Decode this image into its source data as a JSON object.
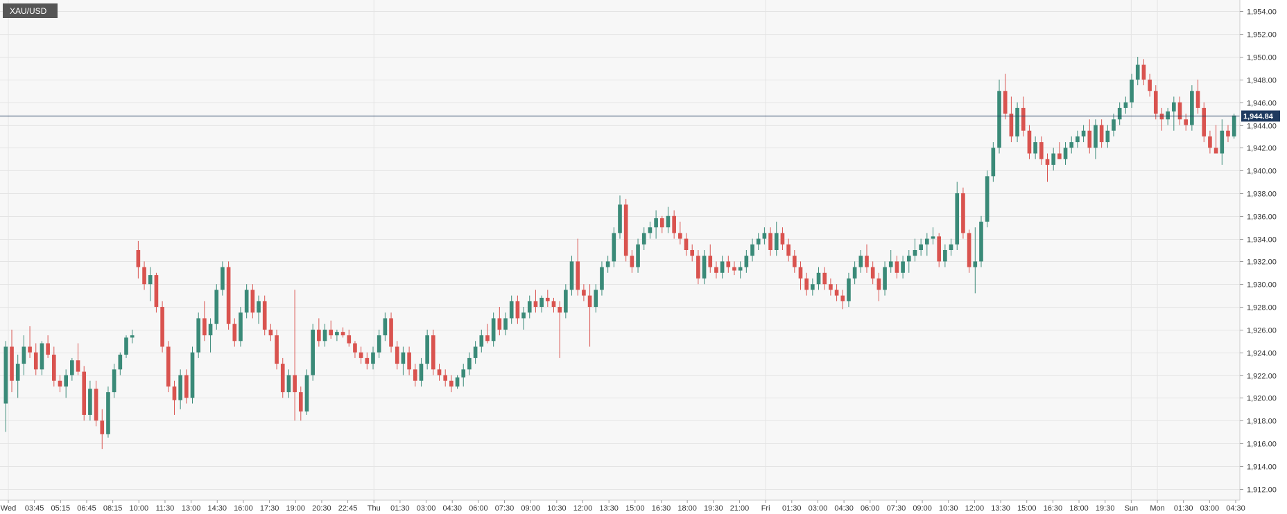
{
  "chart_data": {
    "type": "candlestick",
    "symbol": "XAU/USD",
    "last_price": 1944.84,
    "last_price_label": "1,944.84",
    "ylim": [
      1911,
      1955
    ],
    "y_ticks": [
      1912,
      1914,
      1916,
      1918,
      1920,
      1922,
      1924,
      1926,
      1928,
      1930,
      1932,
      1934,
      1936,
      1938,
      1940,
      1942,
      1944,
      1946,
      1948,
      1950,
      1952,
      1954
    ],
    "y_tick_labels": [
      "1,912.00",
      "1,914.00",
      "1,916.00",
      "1,918.00",
      "1,920.00",
      "1,922.00",
      "1,924.00",
      "1,926.00",
      "1,928.00",
      "1,930.00",
      "1,932.00",
      "1,934.00",
      "1,936.00",
      "1,938.00",
      "1,940.00",
      "1,942.00",
      "1,944.00",
      "1,946.00",
      "1,948.00",
      "1,950.00",
      "1,952.00",
      "1,954.00"
    ],
    "x_labels": [
      "Wed",
      "03:45",
      "05:15",
      "06:45",
      "08:15",
      "10:00",
      "11:30",
      "13:00",
      "14:30",
      "16:00",
      "17:30",
      "19:00",
      "20:30",
      "22:45",
      "Thu",
      "01:30",
      "03:00",
      "04:30",
      "06:00",
      "07:30",
      "09:00",
      "10:30",
      "12:00",
      "13:30",
      "15:00",
      "16:30",
      "18:00",
      "19:30",
      "21:00",
      "Fri",
      "01:30",
      "03:00",
      "04:30",
      "06:00",
      "07:30",
      "09:00",
      "10:30",
      "12:00",
      "13:30",
      "15:00",
      "16:30",
      "18:00",
      "19:30",
      "Sun",
      "Mon",
      "01:30",
      "03:00",
      "04:30"
    ],
    "day_separators": [
      "Wed",
      "Thu",
      "Fri",
      "Sun",
      "Mon"
    ],
    "grid": true,
    "colors": {
      "up": "#3a8a78",
      "down": "#d9534f",
      "last_line": "#1f3a5f",
      "label_bg": "#555555",
      "price_bg": "#1f3a5f"
    },
    "candles": [
      [
        1919.5,
        1925.0,
        1917.0,
        1924.5
      ],
      [
        1924.5,
        1926.0,
        1920.5,
        1921.5
      ],
      [
        1921.5,
        1923.8,
        1920.0,
        1923.0
      ],
      [
        1923.0,
        1925.5,
        1922.0,
        1924.5
      ],
      [
        1924.5,
        1926.3,
        1923.5,
        1924.0
      ],
      [
        1924.0,
        1924.8,
        1922.0,
        1922.5
      ],
      [
        1922.5,
        1925.0,
        1922.0,
        1924.8
      ],
      [
        1924.8,
        1925.5,
        1923.5,
        1923.8
      ],
      [
        1923.8,
        1924.5,
        1921.0,
        1921.5
      ],
      [
        1921.5,
        1922.0,
        1920.5,
        1921.0
      ],
      [
        1921.0,
        1922.5,
        1920.0,
        1922.0
      ],
      [
        1922.0,
        1923.5,
        1921.5,
        1923.3
      ],
      [
        1923.3,
        1924.8,
        1922.0,
        1922.3
      ],
      [
        1922.3,
        1922.8,
        1918.0,
        1918.5
      ],
      [
        1918.5,
        1921.5,
        1918.0,
        1920.8
      ],
      [
        1920.8,
        1921.5,
        1917.5,
        1918.0
      ],
      [
        1918.0,
        1919.0,
        1915.5,
        1916.8
      ],
      [
        1916.8,
        1921.0,
        1916.5,
        1920.5
      ],
      [
        1920.5,
        1923.0,
        1920.0,
        1922.5
      ],
      [
        1922.5,
        1924.0,
        1922.0,
        1923.8
      ],
      [
        1923.8,
        1925.5,
        1923.5,
        1925.3
      ],
      [
        1925.3,
        1926.0,
        1924.8,
        1925.5
      ],
      [
        1933.0,
        1933.8,
        1930.5,
        1931.5
      ],
      [
        1931.5,
        1932.0,
        1929.5,
        1930.0
      ],
      [
        1930.0,
        1931.5,
        1928.5,
        1930.8
      ],
      [
        1930.8,
        1931.0,
        1927.5,
        1928.0
      ],
      [
        1928.0,
        1928.5,
        1924.0,
        1924.5
      ],
      [
        1924.5,
        1925.0,
        1920.5,
        1921.0
      ],
      [
        1921.0,
        1921.5,
        1918.5,
        1919.8
      ],
      [
        1919.8,
        1922.5,
        1919.0,
        1922.0
      ],
      [
        1922.0,
        1922.5,
        1919.5,
        1920.0
      ],
      [
        1920.0,
        1924.5,
        1919.5,
        1924.0
      ],
      [
        1924.0,
        1927.5,
        1923.5,
        1927.0
      ],
      [
        1927.0,
        1928.5,
        1925.0,
        1925.5
      ],
      [
        1925.5,
        1927.0,
        1924.0,
        1926.5
      ],
      [
        1926.5,
        1930.0,
        1926.0,
        1929.5
      ],
      [
        1929.5,
        1932.0,
        1929.0,
        1931.5
      ],
      [
        1931.5,
        1932.0,
        1926.0,
        1926.5
      ],
      [
        1926.5,
        1927.0,
        1924.5,
        1925.0
      ],
      [
        1925.0,
        1928.0,
        1924.5,
        1927.5
      ],
      [
        1927.5,
        1930.0,
        1927.0,
        1929.5
      ],
      [
        1929.5,
        1930.0,
        1927.0,
        1927.5
      ],
      [
        1927.5,
        1929.0,
        1926.5,
        1928.5
      ],
      [
        1928.5,
        1929.0,
        1925.5,
        1926.0
      ],
      [
        1926.0,
        1926.5,
        1925.0,
        1925.5
      ],
      [
        1925.5,
        1926.0,
        1922.5,
        1923.0
      ],
      [
        1923.0,
        1923.5,
        1920.0,
        1920.5
      ],
      [
        1920.5,
        1922.5,
        1920.0,
        1922.0
      ],
      [
        1922.0,
        1929.5,
        1918.0,
        1920.5
      ],
      [
        1920.5,
        1921.0,
        1918.0,
        1918.8
      ],
      [
        1918.8,
        1922.5,
        1918.5,
        1922.0
      ],
      [
        1922.0,
        1926.5,
        1921.5,
        1926.0
      ],
      [
        1926.0,
        1927.0,
        1924.5,
        1925.0
      ],
      [
        1925.0,
        1926.5,
        1924.5,
        1926.0
      ],
      [
        1926.0,
        1926.8,
        1925.2,
        1925.5
      ],
      [
        1925.5,
        1926.0,
        1925.0,
        1925.8
      ],
      [
        1925.8,
        1926.2,
        1925.3,
        1925.5
      ],
      [
        1925.5,
        1926.0,
        1924.5,
        1924.8
      ],
      [
        1924.8,
        1925.0,
        1923.5,
        1924.0
      ],
      [
        1924.0,
        1924.5,
        1923.0,
        1923.5
      ],
      [
        1923.5,
        1924.0,
        1922.5,
        1923.0
      ],
      [
        1923.0,
        1924.5,
        1922.5,
        1924.0
      ],
      [
        1924.0,
        1926.0,
        1923.5,
        1925.5
      ],
      [
        1925.5,
        1927.5,
        1925.0,
        1927.0
      ],
      [
        1927.0,
        1927.5,
        1924.0,
        1924.5
      ],
      [
        1924.5,
        1925.0,
        1922.5,
        1923.0
      ],
      [
        1923.0,
        1924.5,
        1922.0,
        1924.0
      ],
      [
        1924.0,
        1924.5,
        1922.0,
        1922.5
      ],
      [
        1922.5,
        1923.0,
        1921.0,
        1921.5
      ],
      [
        1921.5,
        1923.5,
        1921.0,
        1923.0
      ],
      [
        1923.0,
        1926.0,
        1922.5,
        1925.5
      ],
      [
        1925.5,
        1926.0,
        1922.0,
        1922.5
      ],
      [
        1922.5,
        1923.0,
        1921.5,
        1922.0
      ],
      [
        1922.0,
        1922.5,
        1921.0,
        1921.5
      ],
      [
        1921.5,
        1922.0,
        1920.5,
        1921.0
      ],
      [
        1921.0,
        1922.0,
        1920.8,
        1921.8
      ],
      [
        1921.8,
        1923.0,
        1921.0,
        1922.5
      ],
      [
        1922.5,
        1924.0,
        1922.0,
        1923.5
      ],
      [
        1923.5,
        1925.0,
        1923.0,
        1924.5
      ],
      [
        1924.5,
        1926.0,
        1924.0,
        1925.5
      ],
      [
        1925.5,
        1926.5,
        1924.8,
        1925.0
      ],
      [
        1925.0,
        1927.5,
        1924.5,
        1927.0
      ],
      [
        1927.0,
        1928.0,
        1925.5,
        1926.0
      ],
      [
        1926.0,
        1927.5,
        1925.5,
        1927.0
      ],
      [
        1927.0,
        1929.0,
        1926.5,
        1928.5
      ],
      [
        1928.5,
        1929.0,
        1926.5,
        1927.0
      ],
      [
        1927.0,
        1928.0,
        1926.0,
        1927.5
      ],
      [
        1927.5,
        1929.0,
        1927.0,
        1928.5
      ],
      [
        1928.5,
        1929.5,
        1927.5,
        1928.0
      ],
      [
        1928.0,
        1929.0,
        1927.5,
        1928.8
      ],
      [
        1928.8,
        1929.5,
        1928.0,
        1928.5
      ],
      [
        1928.5,
        1928.8,
        1927.5,
        1928.0
      ],
      [
        1928.0,
        1928.5,
        1923.5,
        1927.5
      ],
      [
        1927.5,
        1930.0,
        1927.0,
        1929.5
      ],
      [
        1929.5,
        1932.5,
        1929.0,
        1932.0
      ],
      [
        1932.0,
        1934.0,
        1929.0,
        1929.5
      ],
      [
        1929.5,
        1930.0,
        1928.5,
        1929.0
      ],
      [
        1929.0,
        1930.0,
        1924.5,
        1928.0
      ],
      [
        1928.0,
        1930.0,
        1927.5,
        1929.5
      ],
      [
        1929.5,
        1932.0,
        1929.0,
        1931.5
      ],
      [
        1931.5,
        1932.5,
        1931.0,
        1932.0
      ],
      [
        1932.0,
        1935.0,
        1931.5,
        1934.5
      ],
      [
        1934.5,
        1937.8,
        1934.0,
        1937.0
      ],
      [
        1937.0,
        1937.5,
        1932.0,
        1932.5
      ],
      [
        1932.5,
        1933.0,
        1931.0,
        1931.5
      ],
      [
        1931.5,
        1934.0,
        1931.0,
        1933.5
      ],
      [
        1933.5,
        1935.0,
        1933.0,
        1934.5
      ],
      [
        1934.5,
        1935.5,
        1934.0,
        1935.0
      ],
      [
        1935.0,
        1936.5,
        1934.0,
        1935.8
      ],
      [
        1935.8,
        1936.0,
        1934.5,
        1935.0
      ],
      [
        1935.0,
        1936.8,
        1934.5,
        1936.0
      ],
      [
        1936.0,
        1936.5,
        1934.0,
        1934.5
      ],
      [
        1934.5,
        1935.5,
        1933.5,
        1934.0
      ],
      [
        1934.0,
        1934.5,
        1932.5,
        1933.0
      ],
      [
        1933.0,
        1933.5,
        1932.0,
        1932.5
      ],
      [
        1932.5,
        1933.0,
        1930.0,
        1930.5
      ],
      [
        1930.5,
        1933.0,
        1930.0,
        1932.5
      ],
      [
        1932.5,
        1933.5,
        1931.0,
        1931.5
      ],
      [
        1931.5,
        1932.0,
        1930.5,
        1931.0
      ],
      [
        1931.0,
        1932.5,
        1930.5,
        1932.0
      ],
      [
        1932.0,
        1932.5,
        1931.0,
        1931.5
      ],
      [
        1931.5,
        1932.0,
        1930.8,
        1931.2
      ],
      [
        1931.2,
        1932.0,
        1930.5,
        1931.5
      ],
      [
        1931.5,
        1933.0,
        1931.0,
        1932.5
      ],
      [
        1932.5,
        1934.0,
        1932.0,
        1933.5
      ],
      [
        1933.5,
        1934.5,
        1933.0,
        1934.0
      ],
      [
        1934.0,
        1935.0,
        1933.5,
        1934.5
      ],
      [
        1934.5,
        1935.0,
        1932.5,
        1933.0
      ],
      [
        1933.0,
        1935.5,
        1932.5,
        1934.5
      ],
      [
        1934.5,
        1935.0,
        1933.0,
        1933.5
      ],
      [
        1933.5,
        1934.0,
        1932.0,
        1932.5
      ],
      [
        1932.5,
        1933.0,
        1931.0,
        1931.5
      ],
      [
        1931.5,
        1932.0,
        1929.5,
        1930.5
      ],
      [
        1930.5,
        1931.0,
        1929.0,
        1929.5
      ],
      [
        1929.5,
        1930.5,
        1929.0,
        1930.0
      ],
      [
        1930.0,
        1931.5,
        1929.5,
        1931.0
      ],
      [
        1931.0,
        1931.5,
        1929.5,
        1930.0
      ],
      [
        1930.0,
        1930.5,
        1929.0,
        1929.5
      ],
      [
        1929.5,
        1930.0,
        1928.5,
        1929.0
      ],
      [
        1929.0,
        1929.5,
        1927.8,
        1928.5
      ],
      [
        1928.5,
        1931.0,
        1928.0,
        1930.5
      ],
      [
        1930.5,
        1932.0,
        1930.0,
        1931.5
      ],
      [
        1931.5,
        1933.0,
        1931.0,
        1932.5
      ],
      [
        1932.5,
        1933.5,
        1931.0,
        1931.5
      ],
      [
        1931.5,
        1932.0,
        1930.0,
        1930.5
      ],
      [
        1930.5,
        1931.0,
        1928.5,
        1929.5
      ],
      [
        1929.5,
        1932.0,
        1929.0,
        1931.5
      ],
      [
        1931.5,
        1933.0,
        1931.0,
        1932.0
      ],
      [
        1932.0,
        1932.5,
        1930.5,
        1931.0
      ],
      [
        1931.0,
        1932.5,
        1930.5,
        1932.0
      ],
      [
        1932.0,
        1933.0,
        1931.0,
        1932.5
      ],
      [
        1932.5,
        1934.0,
        1932.0,
        1933.0
      ],
      [
        1933.0,
        1934.0,
        1932.5,
        1933.5
      ],
      [
        1933.5,
        1934.5,
        1932.5,
        1934.0
      ],
      [
        1934.0,
        1935.0,
        1933.5,
        1934.2
      ],
      [
        1934.2,
        1934.5,
        1931.5,
        1932.0
      ],
      [
        1932.0,
        1933.5,
        1931.5,
        1933.0
      ],
      [
        1933.0,
        1934.0,
        1932.5,
        1933.5
      ],
      [
        1933.5,
        1939.0,
        1933.0,
        1938.0
      ],
      [
        1938.0,
        1938.5,
        1934.0,
        1934.5
      ],
      [
        1934.5,
        1934.8,
        1931.0,
        1931.5
      ],
      [
        1931.5,
        1935.0,
        1929.2,
        1932.0
      ],
      [
        1932.0,
        1936.0,
        1931.5,
        1935.5
      ],
      [
        1935.5,
        1940.0,
        1935.0,
        1939.5
      ],
      [
        1939.5,
        1942.5,
        1939.0,
        1942.0
      ],
      [
        1942.0,
        1948.0,
        1941.5,
        1947.0
      ],
      [
        1947.0,
        1948.5,
        1944.5,
        1945.0
      ],
      [
        1945.0,
        1946.5,
        1942.5,
        1943.0
      ],
      [
        1943.0,
        1946.0,
        1942.5,
        1945.5
      ],
      [
        1945.5,
        1946.5,
        1943.0,
        1943.5
      ],
      [
        1943.5,
        1944.0,
        1941.0,
        1941.5
      ],
      [
        1941.5,
        1943.0,
        1941.0,
        1942.5
      ],
      [
        1942.5,
        1943.0,
        1940.5,
        1941.0
      ],
      [
        1941.0,
        1941.5,
        1939.0,
        1940.5
      ],
      [
        1940.5,
        1942.0,
        1940.0,
        1941.5
      ],
      [
        1941.5,
        1942.5,
        1941.0,
        1941.0
      ],
      [
        1941.0,
        1942.5,
        1940.5,
        1942.0
      ],
      [
        1942.0,
        1943.0,
        1941.5,
        1942.5
      ],
      [
        1942.5,
        1943.5,
        1942.0,
        1943.0
      ],
      [
        1943.0,
        1944.0,
        1942.5,
        1943.5
      ],
      [
        1943.5,
        1944.5,
        1941.5,
        1942.0
      ],
      [
        1942.0,
        1944.5,
        1941.0,
        1944.0
      ],
      [
        1944.0,
        1944.5,
        1942.0,
        1942.5
      ],
      [
        1942.5,
        1944.0,
        1942.0,
        1943.5
      ],
      [
        1943.5,
        1945.0,
        1943.0,
        1944.5
      ],
      [
        1944.5,
        1946.0,
        1944.0,
        1945.5
      ],
      [
        1945.5,
        1946.5,
        1945.0,
        1946.0
      ],
      [
        1946.0,
        1948.5,
        1945.5,
        1948.0
      ],
      [
        1948.0,
        1950.0,
        1947.5,
        1949.3
      ],
      [
        1949.3,
        1949.8,
        1947.5,
        1948.0
      ],
      [
        1948.0,
        1948.5,
        1946.5,
        1947.0
      ],
      [
        1947.0,
        1947.5,
        1944.5,
        1945.0
      ],
      [
        1945.0,
        1945.5,
        1943.5,
        1944.5
      ],
      [
        1944.5,
        1945.5,
        1944.0,
        1945.2
      ],
      [
        1945.2,
        1946.5,
        1943.5,
        1946.0
      ],
      [
        1946.0,
        1946.5,
        1944.0,
        1944.5
      ],
      [
        1944.5,
        1945.0,
        1943.5,
        1944.0
      ],
      [
        1944.0,
        1947.5,
        1943.5,
        1947.0
      ],
      [
        1947.0,
        1948.0,
        1945.0,
        1945.5
      ],
      [
        1945.5,
        1946.0,
        1942.5,
        1943.0
      ],
      [
        1943.0,
        1943.5,
        1941.5,
        1942.0
      ],
      [
        1942.0,
        1944.0,
        1941.5,
        1941.5
      ],
      [
        1941.5,
        1944.5,
        1940.5,
        1943.5
      ],
      [
        1943.5,
        1944.0,
        1942.5,
        1943.0
      ],
      [
        1943.0,
        1945.0,
        1942.8,
        1944.84
      ]
    ]
  }
}
